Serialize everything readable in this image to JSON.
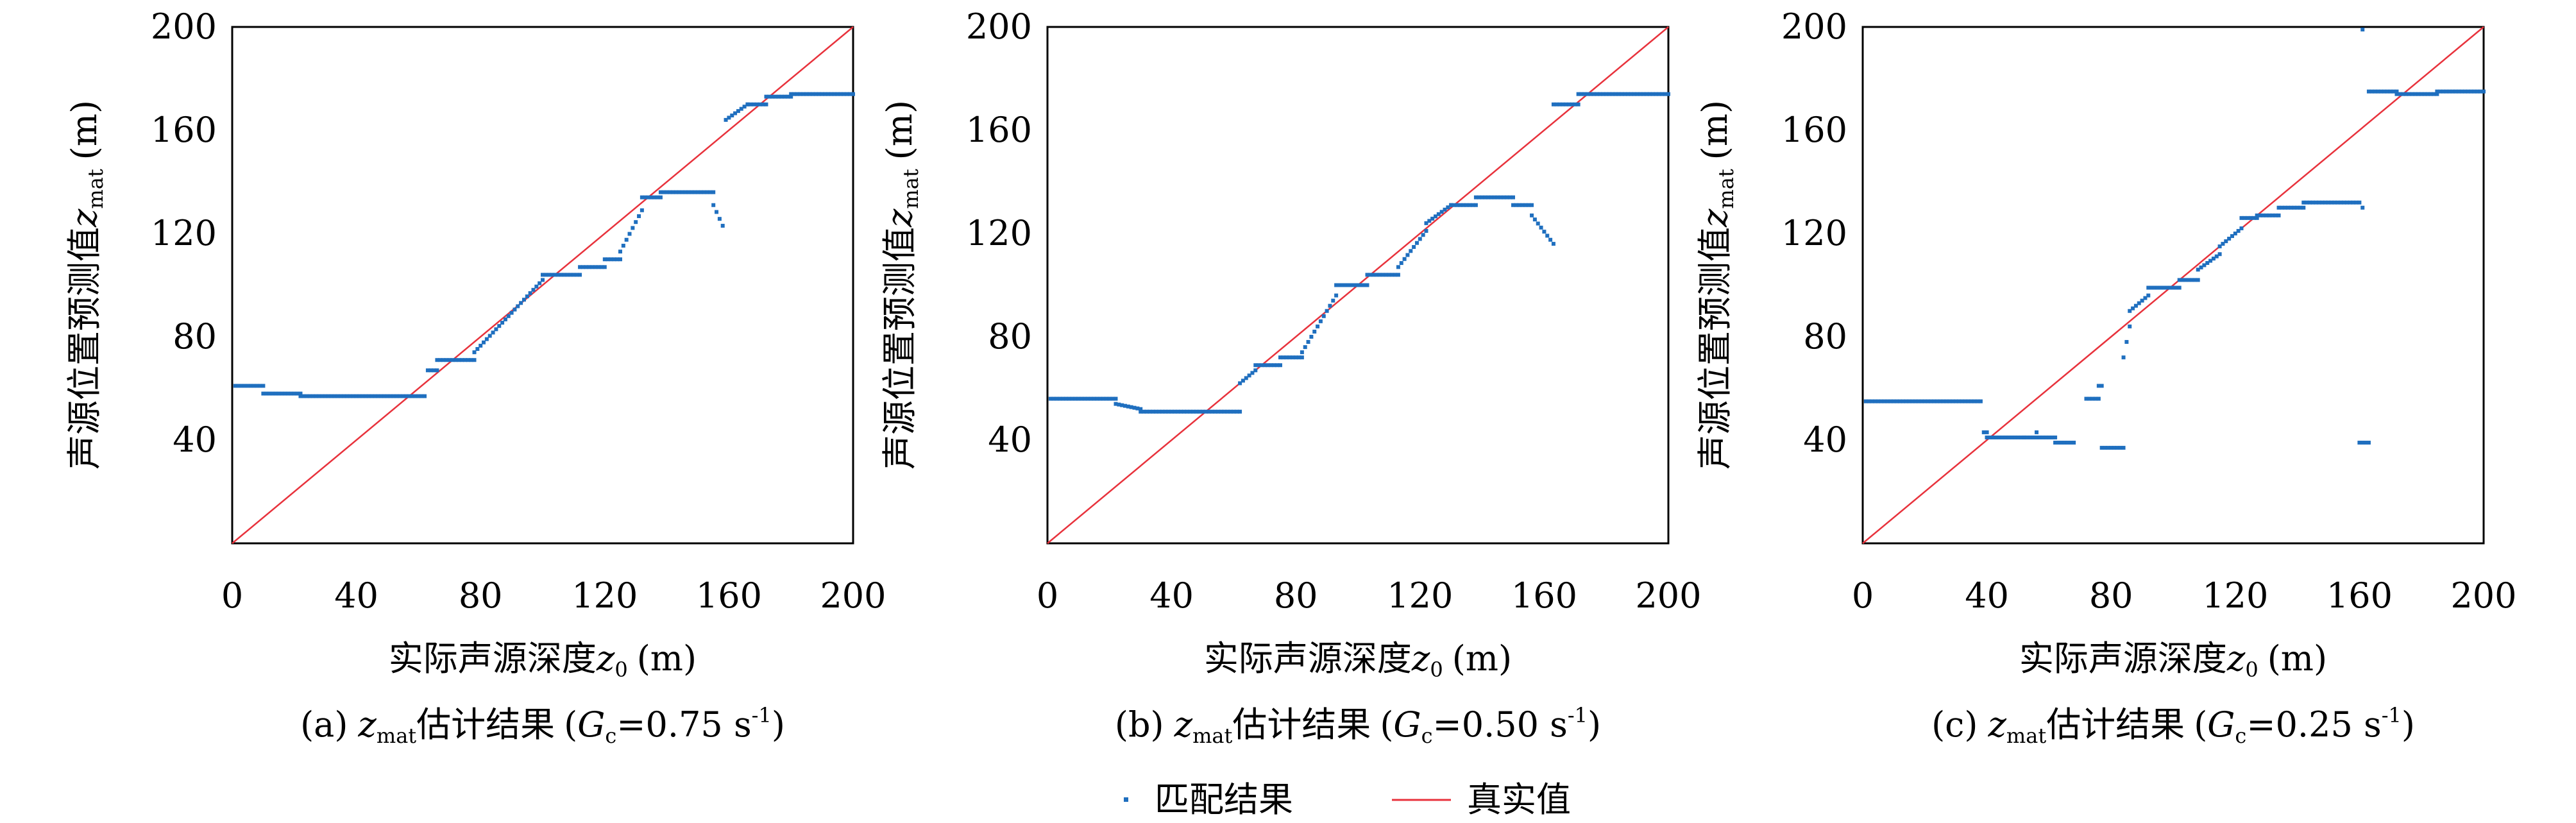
{
  "colors": {
    "matched": "#1f6fbf",
    "true_line": "#e8323c",
    "axis": "#000000"
  },
  "x_axis_label": "实际声源深度",
  "x_axis_symbol": "z",
  "x_axis_subscript": "0",
  "x_axis_unit": "(m)",
  "y_axis_label": "声源位置预测值",
  "y_axis_symbol": "z",
  "y_axis_subscript": "mat",
  "y_axis_unit": "(m)",
  "legend": {
    "matched_label": "匹配结果",
    "true_label": "真实值"
  },
  "chart_data": [
    {
      "type": "scatter",
      "caption_prefix": "(a)",
      "caption_symbol": "z",
      "caption_symbol_sub": "mat",
      "caption_text": "估计结果",
      "caption_param": "G",
      "caption_param_sub": "c",
      "caption_value": "=0.75 s",
      "caption_unit_sup": "-1",
      "xlim": [
        0,
        200
      ],
      "ylim": [
        0,
        200
      ],
      "x_ticks": [
        0,
        40,
        80,
        120,
        160,
        200
      ],
      "y_ticks": [
        40,
        80,
        120,
        160,
        200
      ],
      "series": [
        {
          "name": "匹配结果",
          "segments": [
            [
              1,
              10,
              61
            ],
            [
              10,
              22,
              58
            ],
            [
              22,
              62,
              57
            ],
            [
              63,
              66,
              67
            ],
            [
              66,
              78,
              71
            ],
            [
              78,
              100,
              74,
              102
            ],
            [
              100,
              112,
              104
            ],
            [
              112,
              120,
              107
            ],
            [
              120,
              125,
              110
            ],
            [
              125,
              132,
              113,
              129
            ],
            [
              132,
              138,
              134
            ],
            [
              138,
              155,
              136
            ],
            [
              155,
              158,
              131,
              123
            ],
            [
              159,
              166,
              164,
              170
            ],
            [
              166,
              172,
              170
            ],
            [
              172,
              180,
              173
            ],
            [
              180,
              200,
              174
            ]
          ]
        },
        {
          "name": "真实值",
          "x": [
            0,
            200
          ],
          "y": [
            0,
            200
          ]
        }
      ]
    },
    {
      "type": "scatter",
      "caption_prefix": "(b)",
      "caption_symbol": "z",
      "caption_symbol_sub": "mat",
      "caption_text": "估计结果",
      "caption_param": "G",
      "caption_param_sub": "c",
      "caption_value": "=0.50 s",
      "caption_unit_sup": "-1",
      "xlim": [
        0,
        200
      ],
      "ylim": [
        0,
        200
      ],
      "x_ticks": [
        0,
        40,
        80,
        120,
        160,
        200
      ],
      "y_ticks": [
        40,
        80,
        120,
        160,
        200
      ],
      "series": [
        {
          "name": "匹配结果",
          "segments": [
            [
              1,
              22,
              56
            ],
            [
              22,
              30,
              54,
              52
            ],
            [
              30,
              62,
              51
            ],
            [
              62,
              67,
              62,
              67
            ],
            [
              67,
              75,
              69
            ],
            [
              75,
              82,
              72
            ],
            [
              82,
              93,
              74,
              96
            ],
            [
              93,
              103,
              100
            ],
            [
              103,
              113,
              104
            ],
            [
              113,
              122,
              107,
              121
            ],
            [
              122,
              130,
              124,
              131
            ],
            [
              130,
              138,
              131
            ],
            [
              138,
              150,
              134
            ],
            [
              150,
              156,
              131
            ],
            [
              156,
              163,
              127,
              116
            ],
            [
              163,
              171,
              170
            ],
            [
              171,
              200,
              174
            ]
          ]
        },
        {
          "name": "真实值",
          "x": [
            0,
            200
          ],
          "y": [
            0,
            200
          ]
        }
      ]
    },
    {
      "type": "scatter",
      "caption_prefix": "(c)",
      "caption_symbol": "z",
      "caption_symbol_sub": "mat",
      "caption_text": "估计结果",
      "caption_param": "G",
      "caption_param_sub": "c",
      "caption_value": "=0.25 s",
      "caption_unit_sup": "-1",
      "xlim": [
        0,
        200
      ],
      "ylim": [
        0,
        200
      ],
      "x_ticks": [
        0,
        40,
        80,
        120,
        160,
        200
      ],
      "y_ticks": [
        40,
        80,
        120,
        160,
        200
      ],
      "series": [
        {
          "name": "匹配结果",
          "segments": [
            [
              1,
              38,
              55
            ],
            [
              39,
              40,
              43
            ],
            [
              40,
              52,
              41
            ],
            [
              52,
              62,
              41
            ],
            [
              62,
              68,
              39
            ],
            [
              72,
              76,
              56
            ],
            [
              76,
              77,
              61
            ],
            [
              77,
              84,
              37
            ],
            [
              84,
              86,
              72,
              84
            ],
            [
              86,
              92,
              90,
              96
            ],
            [
              92,
              102,
              99
            ],
            [
              102,
              108,
              102
            ],
            [
              108,
              115,
              106,
              112
            ],
            [
              115,
              122,
              115,
              122
            ],
            [
              122,
              127,
              126
            ],
            [
              127,
              134,
              127
            ],
            [
              134,
              142,
              130
            ],
            [
              142,
              160,
              132
            ],
            [
              160,
              163,
              39
            ],
            [
              163,
              172,
              175
            ],
            [
              172,
              185,
              174
            ],
            [
              185,
              200,
              175
            ]
          ],
          "points": [
            [
              161,
              199
            ],
            [
              161,
              130
            ],
            [
              40,
              41
            ],
            [
              56,
              43
            ]
          ]
        },
        {
          "name": "真实值",
          "x": [
            0,
            200
          ],
          "y": [
            0,
            200
          ]
        }
      ]
    }
  ]
}
